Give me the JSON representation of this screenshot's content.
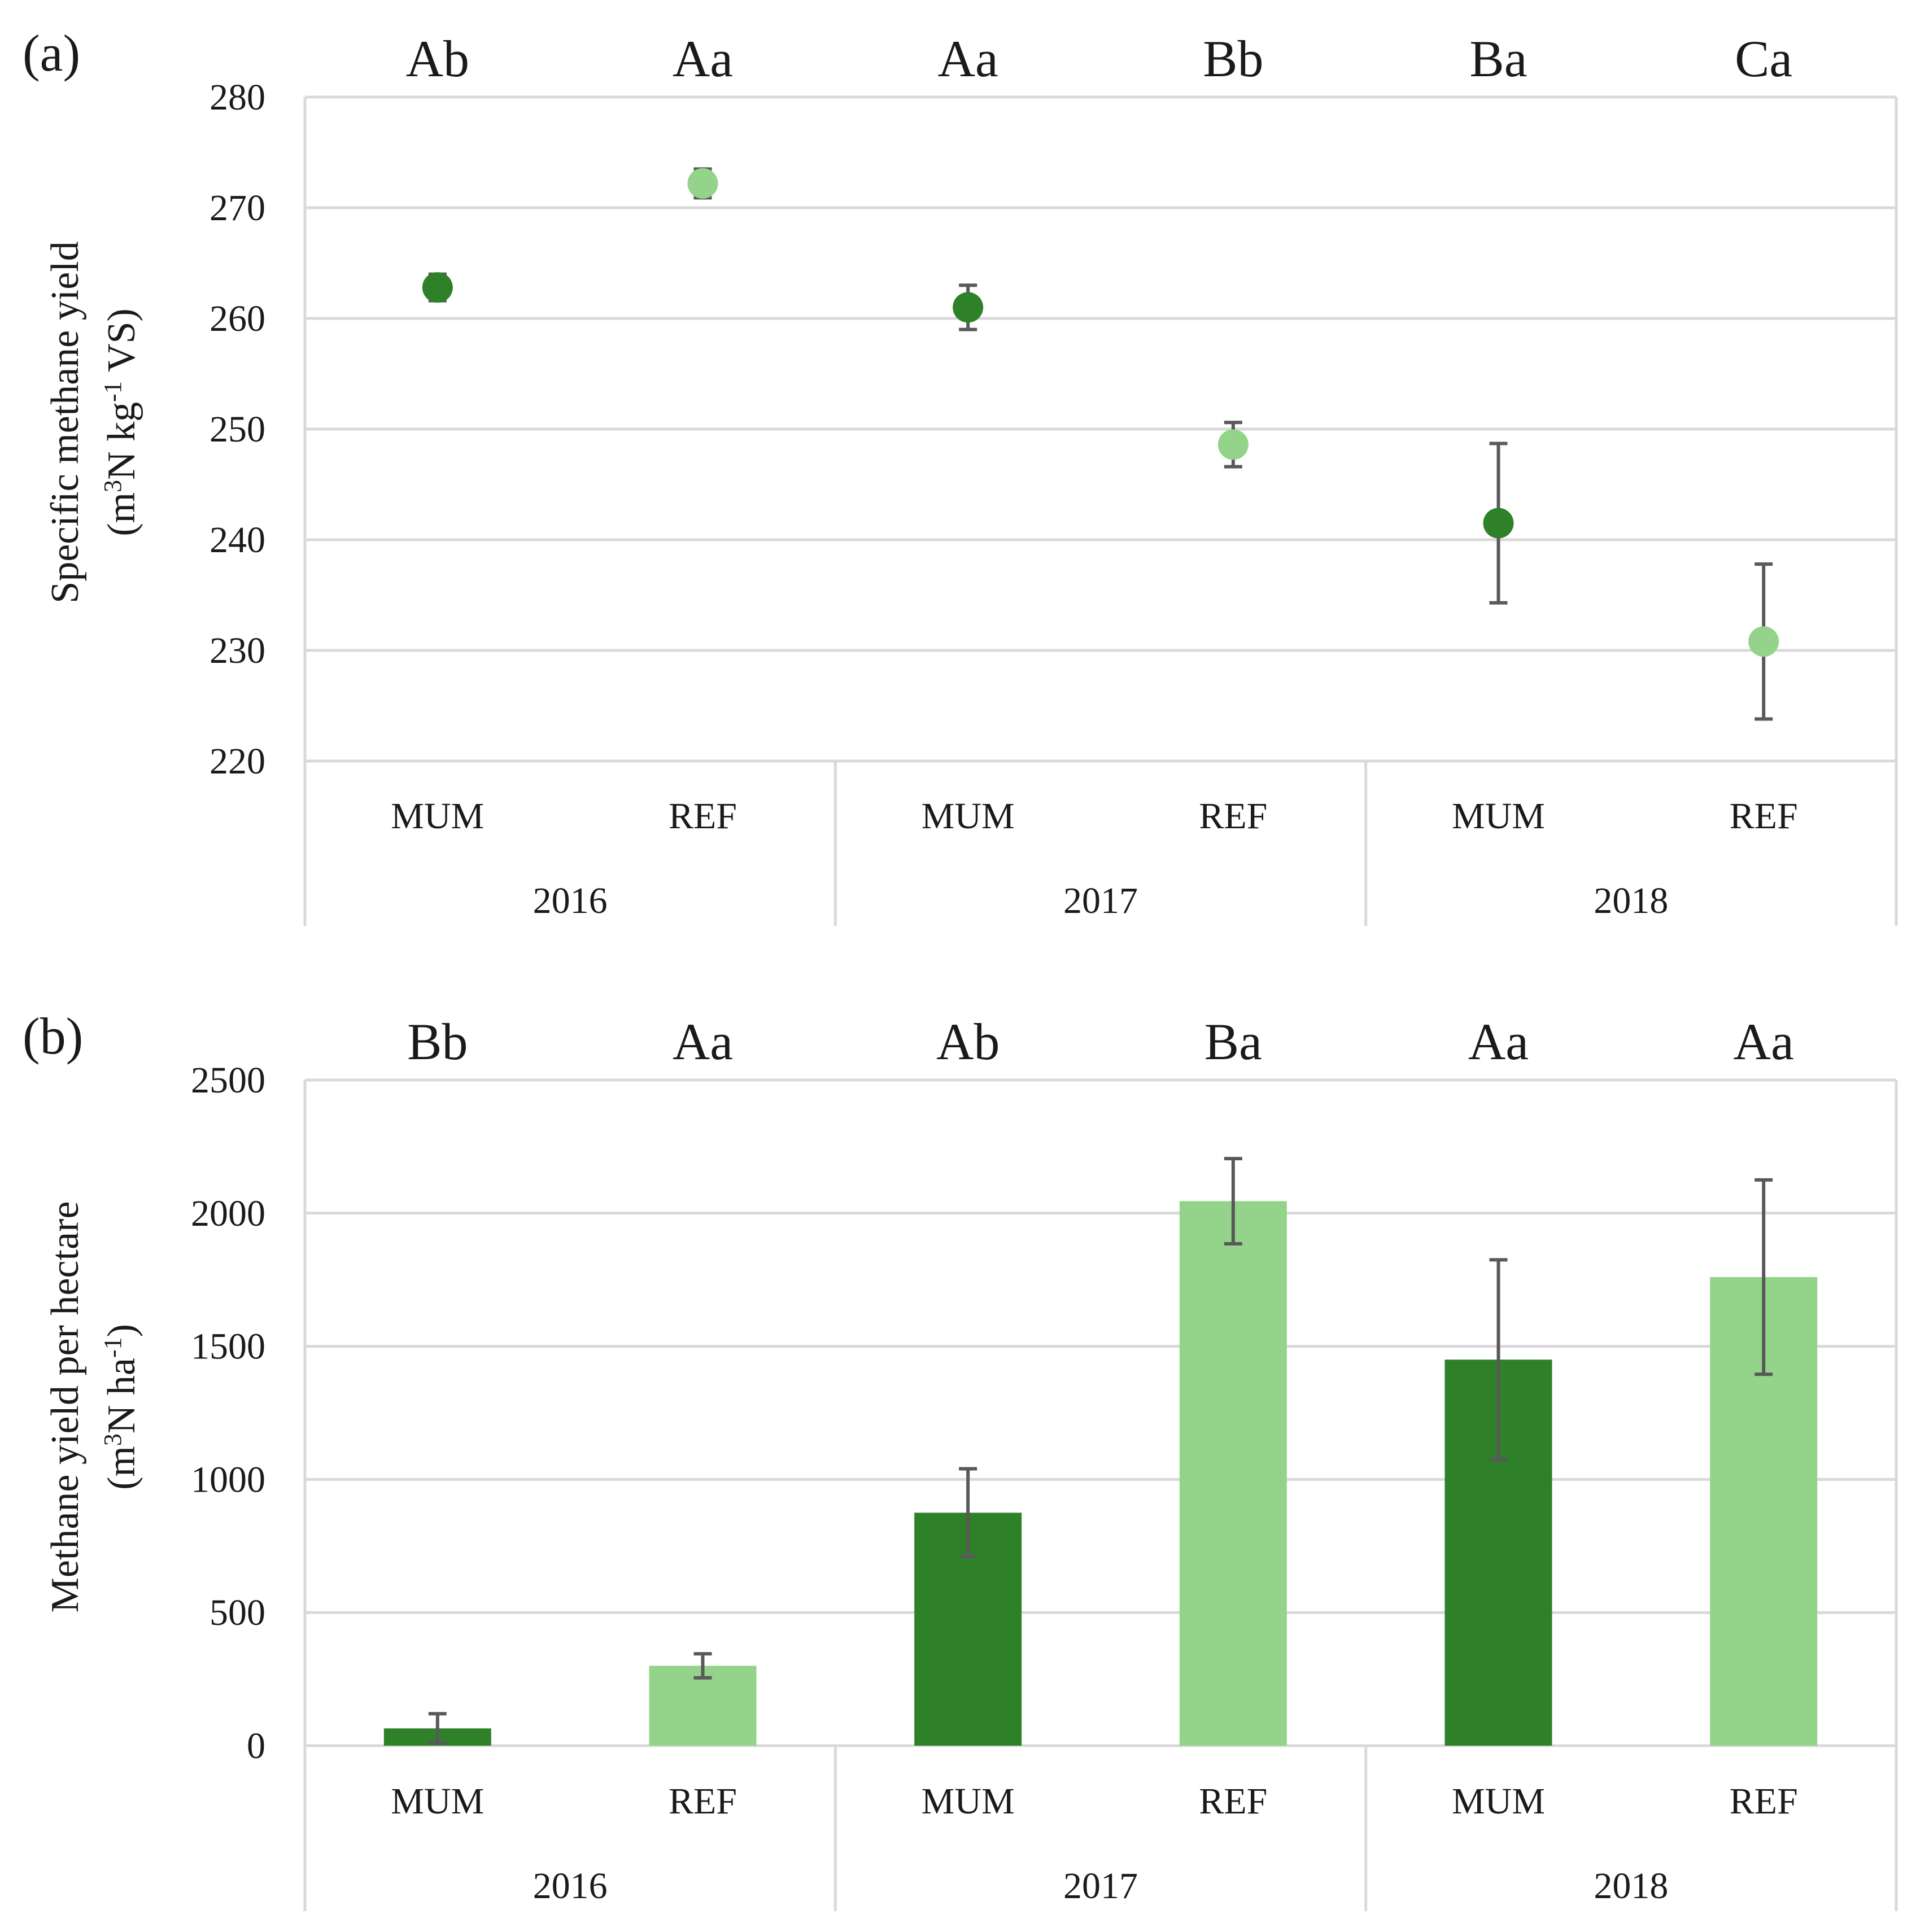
{
  "chart_data": [
    {
      "panel": "(a)",
      "type": "scatter",
      "categories": [
        "MUM",
        "REF",
        "MUM",
        "REF",
        "MUM",
        "REF"
      ],
      "groups": [
        "2016",
        "2017",
        "2018"
      ],
      "ylabel_line1": "Specific methane yield",
      "ylabel_line2_pre": "(m",
      "ylabel_line2_sup1": "3",
      "ylabel_line2_mid": "N kg",
      "ylabel_line2_sup2": "-1",
      "ylabel_line2_post": " VS)",
      "ylim": [
        220,
        280
      ],
      "yticks": [
        "220",
        "230",
        "240",
        "250",
        "260",
        "270",
        "280"
      ],
      "significance": [
        "Ab",
        "Aa",
        "Aa",
        "Bb",
        "Ba",
        "Ca"
      ],
      "values": [
        262.8,
        272.2,
        261.0,
        248.6,
        241.5,
        230.8
      ],
      "errors": [
        1.2,
        1.3,
        2.0,
        2.0,
        7.2,
        7.0
      ],
      "grid": true
    },
    {
      "panel": "(b)",
      "type": "bar",
      "categories": [
        "MUM",
        "REF",
        "MUM",
        "REF",
        "MUM",
        "REF"
      ],
      "groups": [
        "2016",
        "2017",
        "2018"
      ],
      "ylabel_line1": "Methane yield per hectare",
      "ylabel_line2_pre": "(m",
      "ylabel_line2_sup1": "3",
      "ylabel_line2_mid": "N ha",
      "ylabel_line2_sup2": "-1",
      "ylabel_line2_post": ")",
      "ylim": [
        0,
        2500
      ],
      "yticks": [
        "0",
        "500",
        "1000",
        "1500",
        "2000",
        "2500"
      ],
      "significance": [
        "Bb",
        "Aa",
        "Ab",
        "Ba",
        "Aa",
        "Aa"
      ],
      "values": [
        65,
        300,
        875,
        2045,
        1450,
        1760
      ],
      "errors": [
        55,
        45,
        165,
        160,
        375,
        365
      ],
      "grid": true
    }
  ],
  "colors": {
    "mum": "#2E8128",
    "ref": "#94D38A",
    "grid": "#D9D9D9",
    "error": "#595959"
  }
}
